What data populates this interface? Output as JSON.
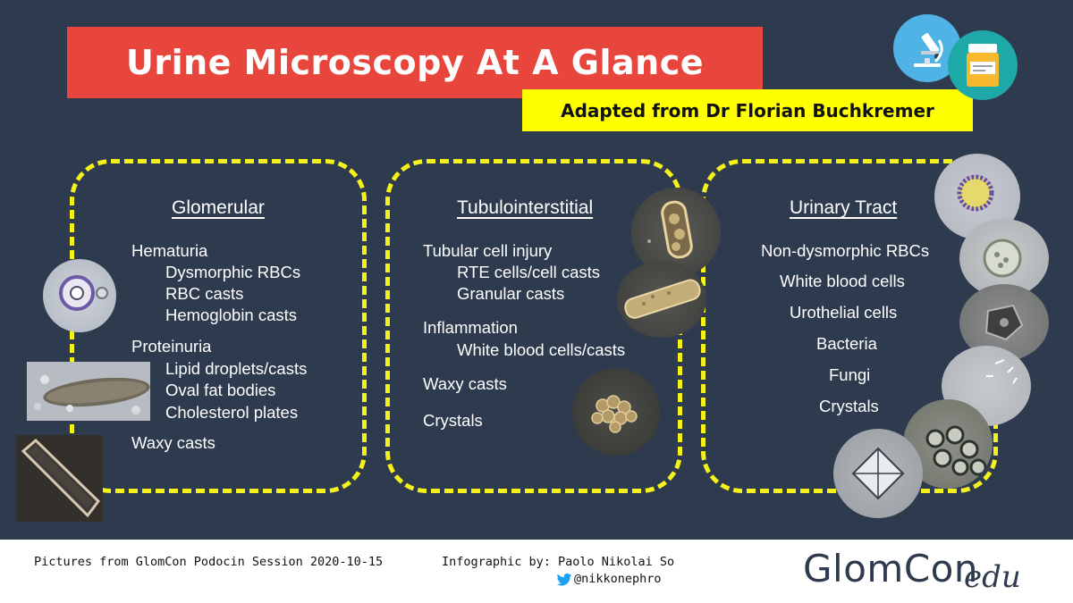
{
  "header": {
    "title": "Urine Microscopy At A Glance",
    "subtitle": "Adapted from Dr Florian Buchkremer"
  },
  "colors": {
    "background": "#2e3a4e",
    "title_banner": "#e8453c",
    "subtitle_banner": "#ffff00",
    "panel_border": "#f5f21a",
    "icon_microscope_bg": "#4fb3e6",
    "icon_container_bg": "#1fa8a8"
  },
  "icons": [
    "microscope-icon",
    "specimen-container-icon",
    "twitter-icon"
  ],
  "panels": {
    "glomerular": {
      "heading": "Glomerular",
      "items": [
        "Hematuria",
        "Dysmorphic RBCs",
        "RBC casts",
        "Hemoglobin casts",
        "Proteinuria",
        "Lipid droplets/casts",
        "Oval fat bodies",
        "Cholesterol plates",
        "Waxy casts"
      ]
    },
    "tubulointerstitial": {
      "heading": "Tubulointerstitial",
      "items": [
        "Tubular cell injury",
        "RTE cells/cell casts",
        "Granular casts",
        "Inflammation",
        "White blood cells/casts",
        "Waxy casts",
        "Crystals"
      ]
    },
    "urinary_tract": {
      "heading": "Urinary Tract",
      "items": [
        "Non-dysmorphic RBCs",
        "White blood cells",
        "Urothelial cells",
        "Bacteria",
        "Fungi",
        "Crystals"
      ]
    }
  },
  "footer": {
    "pictures_credit": "Pictures from GlomCon Podocin Session 2020-10-15",
    "infographic_credit": "Infographic by: Paolo Nikolai So",
    "handle": "@nikkonephro",
    "brand": "GlomCon",
    "brand_suffix": "edu"
  }
}
